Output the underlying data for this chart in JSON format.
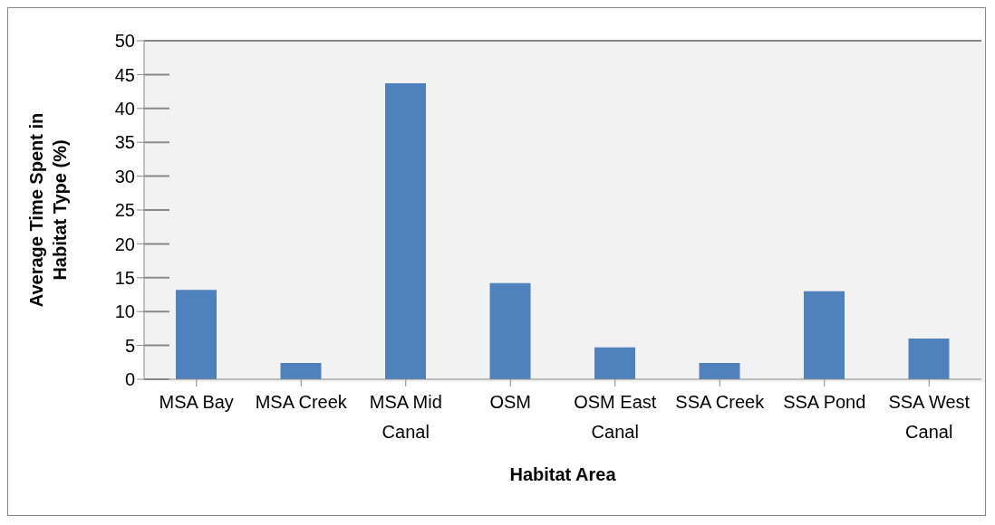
{
  "chart_data": {
    "type": "bar",
    "xlabel": "Habitat Area",
    "ylabel": "Average Time Spent in Habitat Type (%)",
    "categories": [
      "MSA Bay",
      "MSA Creek",
      "MSA Mid Canal",
      "OSM",
      "OSM East Canal",
      "SSA Creek",
      "SSA Pond",
      "SSA West Canal"
    ],
    "values": [
      13.2,
      2.4,
      43.7,
      14.2,
      4.7,
      2.4,
      13.0,
      6.0
    ],
    "color": "#4f81bd",
    "ylim": [
      0,
      50
    ],
    "yticks": [
      0,
      5,
      10,
      15,
      20,
      25,
      30,
      35,
      40,
      45,
      50
    ],
    "grid": "y",
    "legend": false
  }
}
